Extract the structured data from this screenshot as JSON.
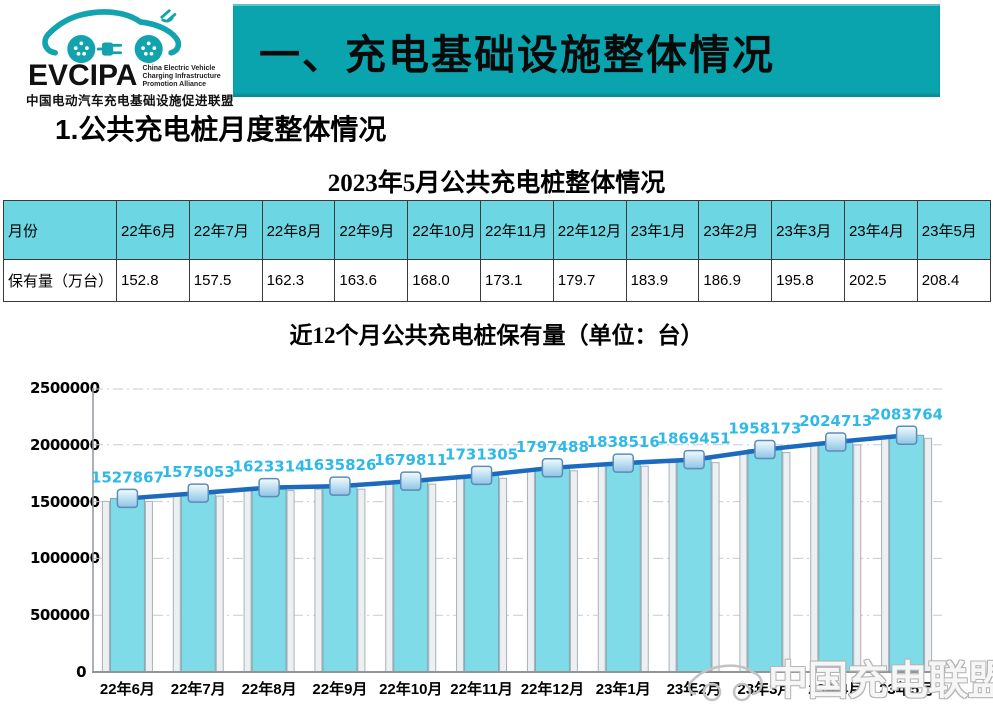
{
  "logo": {
    "acronym": "EVCIPA",
    "english_lines": [
      "China Electric Vehicle",
      "Charging Infrastructure",
      "Promotion Alliance"
    ],
    "chinese_name": "中国电动汽车充电基础设施促进联盟",
    "accent_color": "#12A3AE"
  },
  "banner": {
    "title": "一、充电基础设施整体情况",
    "bg_color": "#0AA4AE"
  },
  "section": {
    "number": "1.",
    "title": "公共充电桩月度整体情况"
  },
  "table": {
    "title": "2023年5月公共充电桩整体情况",
    "corner_label": "月份",
    "row_label": "保有量（万台）",
    "header_bg": "#6CD6E2",
    "months": [
      "22年6月",
      "22年7月",
      "22年8月",
      "22年9月",
      "22年10月",
      "22年11月",
      "22年12月",
      "23年1月",
      "23年2月",
      "23年3月",
      "23年4月",
      "23年5月"
    ],
    "values": [
      "152.8",
      "157.5",
      "162.3",
      "163.6",
      "168.0",
      "173.1",
      "179.7",
      "183.9",
      "186.9",
      "195.8",
      "202.5",
      "208.4"
    ]
  },
  "chart_data": {
    "type": "bar",
    "overlay_series": "line",
    "title": "近12个月公共充电桩保有量（单位：台）",
    "categories": [
      "22年6月",
      "22年7月",
      "22年8月",
      "22年9月",
      "22年10月",
      "22年11月",
      "22年12月",
      "23年1月",
      "23年2月",
      "23年3月",
      "23年4月",
      "23年5月"
    ],
    "values": [
      1527867,
      1575053,
      1623314,
      1635826,
      1679811,
      1731305,
      1797488,
      1838516,
      1869451,
      1958173,
      2024713,
      2083764
    ],
    "ylim": [
      0,
      2500000
    ],
    "ytick_step": 500000,
    "yticks": [
      "0",
      "500000",
      "1000000",
      "1500000",
      "2000000",
      "2500000"
    ],
    "grid": true,
    "legend": "none",
    "bar_color": "#7EDBE7",
    "bar_border_color": "#7FA6B0",
    "wall_color": "#EDF0F2",
    "wall_border_color": "#A9B1B7",
    "line_color": "#1C6ABF",
    "marker_border_color": "#5C8CB8",
    "label_color": "#2FB9E9",
    "grid_color": "#C6CAD0",
    "axis_color": "#8E959B"
  },
  "watermark": {
    "text": "中国充电联盟"
  }
}
